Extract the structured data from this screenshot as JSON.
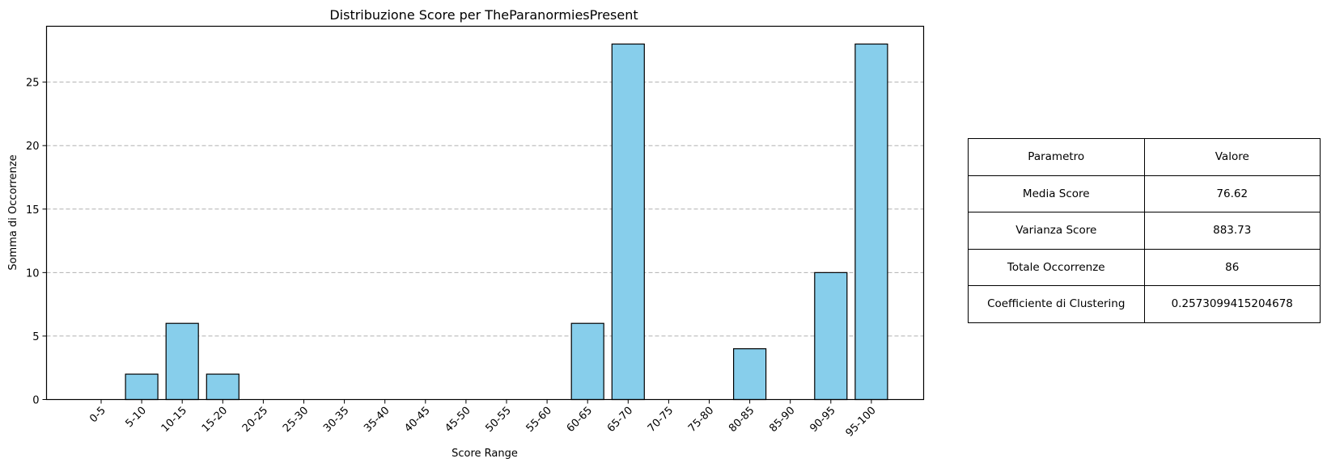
{
  "chart_data": {
    "type": "bar",
    "title": "Distribuzione Score per TheParanormiesPresent",
    "xlabel": "Score Range",
    "ylabel": "Somma di Occorrenze",
    "categories": [
      "0-5",
      "5-10",
      "10-15",
      "15-20",
      "20-25",
      "25-30",
      "30-35",
      "35-40",
      "40-45",
      "45-50",
      "50-55",
      "55-60",
      "60-65",
      "65-70",
      "70-75",
      "75-80",
      "80-85",
      "85-90",
      "90-95",
      "95-100"
    ],
    "values": [
      0,
      2,
      6,
      2,
      0,
      0,
      0,
      0,
      0,
      0,
      0,
      0,
      6,
      28,
      0,
      0,
      4,
      0,
      10,
      28
    ],
    "ylim": [
      0,
      29.4
    ],
    "yticks": [
      0,
      5,
      10,
      15,
      20,
      25
    ],
    "grid": "y, dashed",
    "bar_color": "#87CEEB",
    "edge_color": "#000000"
  },
  "table": {
    "headers": [
      "Parametro",
      "Valore"
    ],
    "rows": [
      [
        "Media Score",
        "76.62"
      ],
      [
        "Varianza Score",
        "883.73"
      ],
      [
        "Totale Occorrenze",
        "86"
      ],
      [
        "Coefficiente di Clustering",
        "0.2573099415204678"
      ]
    ]
  }
}
